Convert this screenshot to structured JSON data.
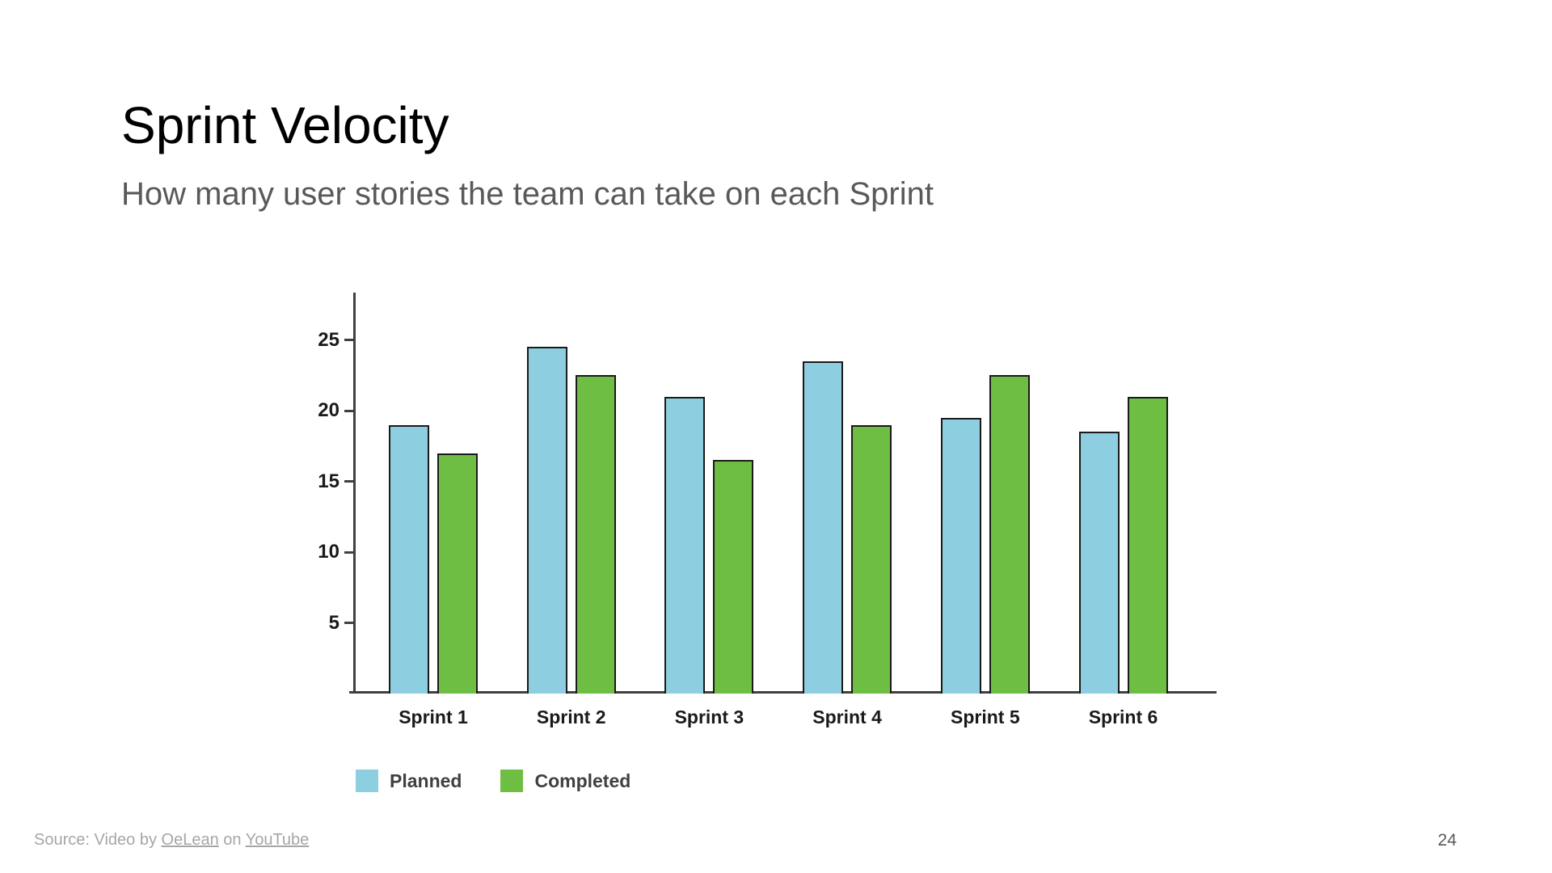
{
  "slide": {
    "title": "Sprint Velocity",
    "subtitle": "How many user stories the team can take on each Sprint",
    "page_number": "24",
    "footer": {
      "source_prefix": "Source: Video by ",
      "source_link_1": "OeLean",
      "source_middle": " on ",
      "source_link_2": "YouTube"
    }
  },
  "chart_data": {
    "type": "bar",
    "title": "Sprint Velocity",
    "subtitle": "How many user stories the team can take on each Sprint",
    "categories": [
      "Sprint 1",
      "Sprint 2",
      "Sprint 3",
      "Sprint 4",
      "Sprint 5",
      "Sprint 6"
    ],
    "series": [
      {
        "name": "Planned",
        "color": "#8DCFE0",
        "values": [
          19,
          24.5,
          21,
          23.5,
          19.5,
          18.5
        ]
      },
      {
        "name": "Completed",
        "color": "#6FBE44",
        "values": [
          17,
          22.5,
          16.5,
          19,
          22.5,
          21
        ]
      }
    ],
    "xlabel": "",
    "ylabel": "",
    "ylim": [
      0,
      28
    ],
    "yticks": [
      5,
      10,
      15,
      20,
      25
    ],
    "grid": false,
    "legend_position": "bottom-left",
    "bar_outline_color": "#1a1a1a",
    "axis_color": "#404040"
  }
}
